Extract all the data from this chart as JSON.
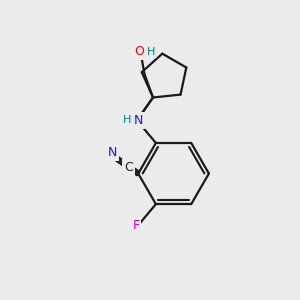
{
  "background_color": "#ebebeb",
  "bond_color": "#1a1a1a",
  "atom_colors": {
    "N": "#1414ff",
    "O": "#ff0000",
    "F": "#cc00cc",
    "C_label": "#1a1a1a",
    "H": "#008080"
  },
  "figsize": [
    3.0,
    3.0
  ],
  "dpi": 100,
  "lw": 1.6
}
